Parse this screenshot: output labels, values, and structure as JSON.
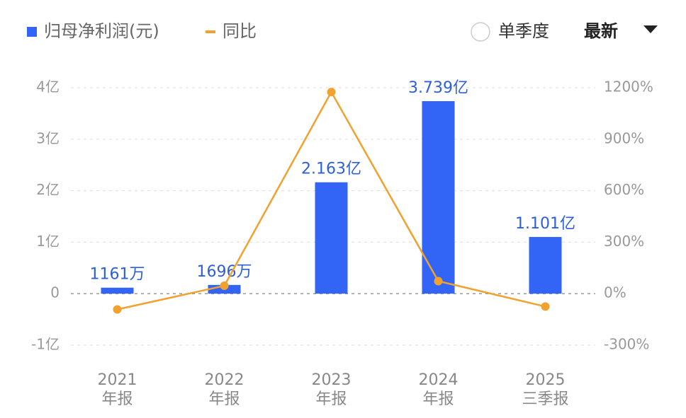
{
  "chart_data": {
    "type": "bar",
    "categories": [
      [
        "2021",
        "年报"
      ],
      [
        "2022",
        "年报"
      ],
      [
        "2023",
        "年报"
      ],
      [
        "2024",
        "年报"
      ],
      [
        "2025",
        "三季报"
      ]
    ],
    "series": [
      {
        "name": "归母净利润(元)",
        "type": "bar",
        "color": "#3265f5",
        "values": [
          11610000,
          16960000,
          216300000,
          373900000,
          110100000
        ],
        "value_labels": [
          "1161万",
          "1696万",
          "2.163亿",
          "3.739亿",
          "1.101亿"
        ]
      },
      {
        "name": "同比",
        "type": "line",
        "axis": "y2",
        "color": "#f0a12e",
        "values": [
          -92,
          46,
          1175,
          73,
          -75
        ]
      }
    ],
    "ylim": [
      -100000000,
      400000000
    ],
    "yticks": [
      {
        "value": -100000000,
        "label": "-1亿"
      },
      0,
      {
        "value": 100000000,
        "label": "1亿"
      },
      {
        "value": 200000000,
        "label": "2亿"
      },
      {
        "value": 300000000,
        "label": "3亿"
      },
      {
        "value": 400000000,
        "label": "4亿"
      }
    ],
    "y2lim": [
      -300,
      1200
    ],
    "y2ticks": [
      {
        "value": -300,
        "label": "-300%"
      },
      {
        "value": 0,
        "label": "0%"
      },
      {
        "value": 300,
        "label": "300%"
      },
      {
        "value": 600,
        "label": "600%"
      },
      {
        "value": 900,
        "label": "900%"
      },
      {
        "value": 1200,
        "label": "1200%"
      }
    ],
    "grid": true
  },
  "controls": {
    "single_quarter": "单季度",
    "period": "最新"
  }
}
